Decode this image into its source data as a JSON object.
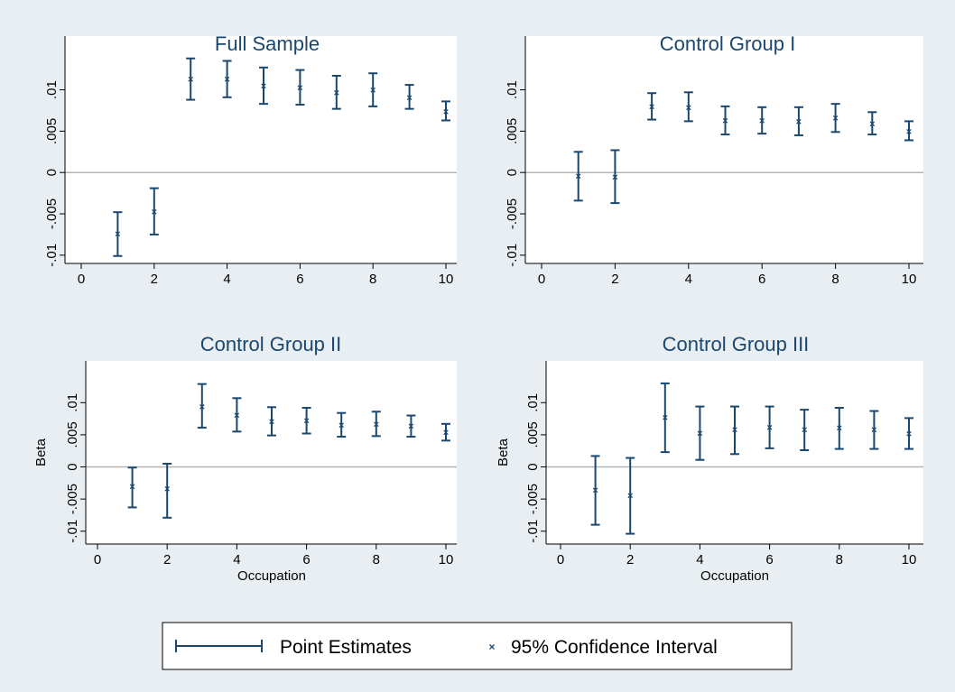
{
  "chart_data": [
    {
      "type": "scatter",
      "title": "Full Sample",
      "xlabel": "",
      "ylabel": "",
      "xlim": [
        0,
        10
      ],
      "ylim": [
        -0.011,
        0.0165
      ],
      "x_ticks": [
        "0",
        "2",
        "4",
        "6",
        "8",
        "10"
      ],
      "y_ticks": [
        "-.01",
        "-.005",
        "0",
        ".005",
        ".01"
      ],
      "x": [
        1,
        2,
        3,
        4,
        5,
        6,
        7,
        8,
        9,
        10
      ],
      "estimates": [
        -0.0074,
        -0.0047,
        0.0113,
        0.0113,
        0.0105,
        0.0103,
        0.0097,
        0.01,
        0.0091,
        0.0074
      ],
      "ci_lower": [
        -0.0101,
        -0.0075,
        0.0088,
        0.0091,
        0.0083,
        0.0082,
        0.0077,
        0.008,
        0.0077,
        0.0063
      ],
      "ci_upper": [
        -0.0048,
        -0.0019,
        0.0138,
        0.0135,
        0.0127,
        0.0124,
        0.0117,
        0.012,
        0.0106,
        0.0086
      ]
    },
    {
      "type": "scatter",
      "title": "Control Group I",
      "xlabel": "",
      "ylabel": "",
      "xlim": [
        0,
        10
      ],
      "ylim": [
        -0.011,
        0.0165
      ],
      "x_ticks": [
        "0",
        "2",
        "4",
        "6",
        "8",
        "10"
      ],
      "y_ticks": [
        "-.01",
        "-.005",
        "0",
        ".005",
        ".01"
      ],
      "x": [
        1,
        2,
        3,
        4,
        5,
        6,
        7,
        8,
        9,
        10
      ],
      "estimates": [
        -0.0004,
        -0.0005,
        0.008,
        0.0079,
        0.0063,
        0.0063,
        0.0062,
        0.0066,
        0.0059,
        0.005
      ],
      "ci_lower": [
        -0.0034,
        -0.0037,
        0.0064,
        0.0062,
        0.0046,
        0.0047,
        0.0045,
        0.0049,
        0.0046,
        0.0039
      ],
      "ci_upper": [
        0.0025,
        0.0027,
        0.0096,
        0.0097,
        0.008,
        0.0079,
        0.0079,
        0.0083,
        0.0073,
        0.0062
      ]
    },
    {
      "type": "scatter",
      "title": "Control Group II",
      "xlabel": "Occupation",
      "ylabel": "Beta",
      "xlim": [
        0,
        10
      ],
      "ylim": [
        -0.012,
        0.0165
      ],
      "x_ticks": [
        "0",
        "2",
        "4",
        "6",
        "8",
        "10"
      ],
      "y_ticks": [
        "-.01",
        "-.005",
        "0",
        ".005",
        ".01"
      ],
      "x": [
        1,
        2,
        3,
        4,
        5,
        6,
        7,
        8,
        9,
        10
      ],
      "estimates": [
        -0.003,
        -0.0034,
        0.0094,
        0.0081,
        0.0071,
        0.0072,
        0.0065,
        0.0067,
        0.0064,
        0.0054
      ],
      "ci_lower": [
        -0.0063,
        -0.0079,
        0.0061,
        0.0055,
        0.0049,
        0.0052,
        0.0047,
        0.0048,
        0.0047,
        0.0041
      ],
      "ci_upper": [
        -0.0001,
        0.0005,
        0.0129,
        0.0107,
        0.0093,
        0.0092,
        0.0084,
        0.0086,
        0.008,
        0.0067
      ]
    },
    {
      "type": "scatter",
      "title": "Control Group III",
      "xlabel": "Occupation",
      "ylabel": "Beta",
      "xlim": [
        0,
        10
      ],
      "ylim": [
        -0.012,
        0.0165
      ],
      "x_ticks": [
        "0",
        "2",
        "4",
        "6",
        "8",
        "10"
      ],
      "y_ticks": [
        "-.01",
        "-.005",
        "0",
        ".005",
        ".01"
      ],
      "x": [
        1,
        2,
        3,
        4,
        5,
        6,
        7,
        8,
        9,
        10
      ],
      "estimates": [
        -0.0036,
        -0.0044,
        0.0077,
        0.0053,
        0.0058,
        0.0062,
        0.0058,
        0.0061,
        0.0058,
        0.0052
      ],
      "ci_lower": [
        -0.009,
        -0.0104,
        0.0023,
        0.0011,
        0.002,
        0.0029,
        0.0026,
        0.0028,
        0.0028,
        0.0028
      ],
      "ci_upper": [
        0.0017,
        0.0014,
        0.013,
        0.0094,
        0.0094,
        0.0094,
        0.0089,
        0.0092,
        0.0087,
        0.0076
      ]
    }
  ],
  "legend": {
    "items": [
      {
        "label": "Point Estimates"
      },
      {
        "label": "95% Confidence Interval"
      }
    ]
  },
  "colors": {
    "background": "#e8eef2",
    "plot_background": "#ffffff",
    "series": "#1a476f",
    "zero_line": "#b4b4b4",
    "axis": "#000000"
  }
}
